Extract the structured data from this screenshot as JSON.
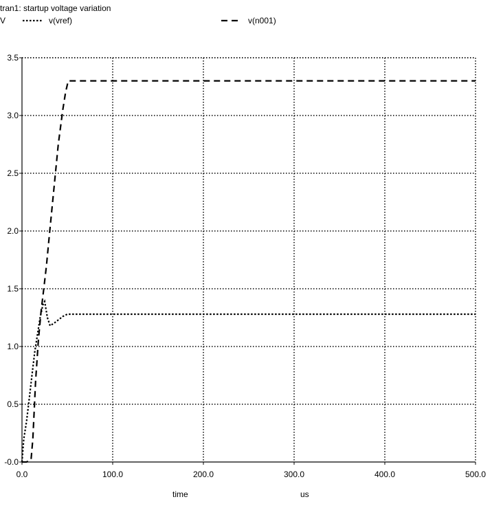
{
  "chart_data": {
    "type": "line",
    "title": "tran1: startup voltage variation",
    "ylabel": "V",
    "xlabel": "time",
    "xunit": "us",
    "xlim": [
      0,
      500
    ],
    "ylim": [
      -0.0,
      3.5
    ],
    "xticks": [
      "0.0",
      "100.0",
      "200.0",
      "300.0",
      "400.0",
      "500.0"
    ],
    "yticks": [
      "-0.0",
      "0.5",
      "1.0",
      "1.5",
      "2.0",
      "2.5",
      "3.0",
      "3.5"
    ],
    "grid": true,
    "series": [
      {
        "name": "v(vref)",
        "style": "dotted",
        "color": "#000000",
        "x": [
          0,
          2,
          5,
          8,
          11,
          14,
          17,
          20,
          23,
          25,
          28,
          31,
          35,
          40,
          45,
          50,
          55,
          100,
          200,
          300,
          400,
          500
        ],
        "y": [
          0.0,
          0.2,
          0.35,
          0.55,
          0.75,
          0.95,
          1.1,
          1.25,
          1.36,
          1.39,
          1.25,
          1.18,
          1.2,
          1.23,
          1.26,
          1.28,
          1.28,
          1.28,
          1.28,
          1.28,
          1.28,
          1.28
        ]
      },
      {
        "name": "v(n001)",
        "style": "dashed",
        "color": "#000000",
        "x": [
          0,
          5,
          10,
          12,
          15,
          18,
          21,
          24,
          27,
          30,
          35,
          40,
          45,
          48,
          51,
          55,
          100,
          200,
          300,
          400,
          500
        ],
        "y": [
          0.0,
          0.0,
          0.02,
          0.2,
          0.7,
          1.05,
          1.3,
          1.5,
          1.7,
          1.95,
          2.35,
          2.75,
          3.05,
          3.2,
          3.3,
          3.3,
          3.3,
          3.3,
          3.3,
          3.3,
          3.3
        ]
      }
    ]
  }
}
